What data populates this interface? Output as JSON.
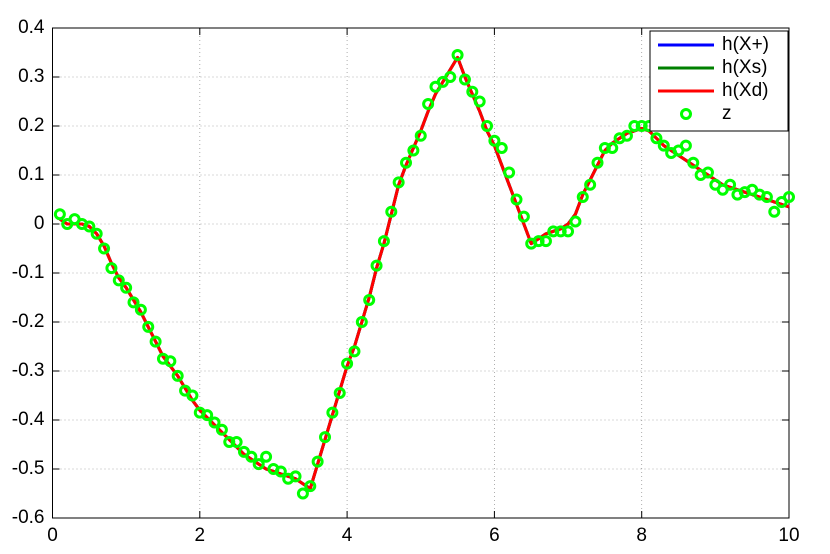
{
  "chart_data": {
    "type": "line",
    "x": [
      0.1,
      0.2,
      0.3,
      0.4,
      0.5,
      0.6,
      0.7,
      0.8,
      0.9,
      1.0,
      1.1,
      1.2,
      1.3,
      1.4,
      1.5,
      1.6,
      1.7,
      1.8,
      1.9,
      2.0,
      2.1,
      2.2,
      2.3,
      2.4,
      2.5,
      2.6,
      2.7,
      2.8,
      2.9,
      3.0,
      3.1,
      3.2,
      3.3,
      3.4,
      3.5,
      3.6,
      3.7,
      3.8,
      3.9,
      4.0,
      4.1,
      4.2,
      4.3,
      4.4,
      4.5,
      4.6,
      4.7,
      4.8,
      4.9,
      5.0,
      5.1,
      5.2,
      5.3,
      5.4,
      5.5,
      5.6,
      5.7,
      5.8,
      5.9,
      6.0,
      6.1,
      6.2,
      6.3,
      6.4,
      6.5,
      6.6,
      6.7,
      6.8,
      6.9,
      7.0,
      7.1,
      7.2,
      7.3,
      7.4,
      7.5,
      7.6,
      7.7,
      7.8,
      7.9,
      8.0,
      8.1,
      8.2,
      8.3,
      8.4,
      8.5,
      8.6,
      8.7,
      8.8,
      8.9,
      9.0,
      9.1,
      9.2,
      9.3,
      9.4,
      9.5,
      9.6,
      9.7,
      9.8,
      9.9,
      10.0
    ],
    "series": [
      {
        "name": "h(X+)",
        "color": "#0000ff",
        "mark": "line",
        "values": [
          0.01,
          0,
          0,
          0,
          -0.005,
          -0.02,
          -0.045,
          -0.08,
          -0.11,
          -0.13,
          -0.155,
          -0.18,
          -0.21,
          -0.24,
          -0.27,
          -0.29,
          -0.31,
          -0.335,
          -0.36,
          -0.38,
          -0.395,
          -0.41,
          -0.425,
          -0.44,
          -0.455,
          -0.47,
          -0.48,
          -0.49,
          -0.5,
          -0.505,
          -0.51,
          -0.515,
          -0.52,
          -0.53,
          -0.54,
          -0.49,
          -0.44,
          -0.39,
          -0.34,
          -0.29,
          -0.25,
          -0.2,
          -0.15,
          -0.09,
          -0.04,
          0.02,
          0.08,
          0.12,
          0.155,
          0.19,
          0.23,
          0.265,
          0.29,
          0.315,
          0.34,
          0.3,
          0.265,
          0.23,
          0.19,
          0.16,
          0.12,
          0.08,
          0.04,
          0,
          -0.04,
          -0.03,
          -0.02,
          -0.015,
          -0.01,
          0,
          0.02,
          0.06,
          0.09,
          0.12,
          0.15,
          0.165,
          0.175,
          0.185,
          0.19,
          0.195,
          0.19,
          0.175,
          0.16,
          0.15,
          0.14,
          0.13,
          0.12,
          0.11,
          0.1,
          0.09,
          0.08,
          0.075,
          0.07,
          0.065,
          0.06,
          0.055,
          0.05,
          0.045,
          0.04,
          0.035
        ]
      },
      {
        "name": "h(Xs)",
        "color": "#008000",
        "mark": "line",
        "values": [
          0.01,
          0,
          0,
          0,
          -0.005,
          -0.02,
          -0.045,
          -0.08,
          -0.11,
          -0.13,
          -0.155,
          -0.18,
          -0.21,
          -0.24,
          -0.27,
          -0.29,
          -0.31,
          -0.335,
          -0.36,
          -0.38,
          -0.395,
          -0.41,
          -0.425,
          -0.44,
          -0.455,
          -0.47,
          -0.48,
          -0.49,
          -0.5,
          -0.505,
          -0.51,
          -0.515,
          -0.52,
          -0.53,
          -0.54,
          -0.49,
          -0.44,
          -0.39,
          -0.34,
          -0.29,
          -0.25,
          -0.2,
          -0.15,
          -0.09,
          -0.04,
          0.02,
          0.08,
          0.12,
          0.155,
          0.19,
          0.23,
          0.265,
          0.29,
          0.315,
          0.34,
          0.3,
          0.265,
          0.23,
          0.19,
          0.16,
          0.12,
          0.08,
          0.04,
          0,
          -0.04,
          -0.03,
          -0.02,
          -0.015,
          -0.01,
          0,
          0.02,
          0.06,
          0.09,
          0.12,
          0.15,
          0.165,
          0.175,
          0.185,
          0.19,
          0.195,
          0.19,
          0.175,
          0.16,
          0.15,
          0.14,
          0.13,
          0.12,
          0.11,
          0.1,
          0.09,
          0.08,
          0.075,
          0.07,
          0.065,
          0.06,
          0.055,
          0.05,
          0.045,
          0.04,
          0.035
        ]
      },
      {
        "name": "h(Xd)",
        "color": "#ff0000",
        "mark": "line",
        "values": [
          0.01,
          0,
          0,
          0,
          -0.005,
          -0.02,
          -0.045,
          -0.08,
          -0.11,
          -0.13,
          -0.155,
          -0.18,
          -0.21,
          -0.24,
          -0.27,
          -0.29,
          -0.31,
          -0.335,
          -0.36,
          -0.38,
          -0.395,
          -0.41,
          -0.425,
          -0.44,
          -0.455,
          -0.47,
          -0.48,
          -0.49,
          -0.5,
          -0.505,
          -0.51,
          -0.515,
          -0.52,
          -0.53,
          -0.54,
          -0.49,
          -0.44,
          -0.39,
          -0.34,
          -0.29,
          -0.25,
          -0.2,
          -0.15,
          -0.09,
          -0.04,
          0.02,
          0.08,
          0.12,
          0.155,
          0.19,
          0.23,
          0.265,
          0.29,
          0.315,
          0.34,
          0.3,
          0.265,
          0.23,
          0.19,
          0.16,
          0.12,
          0.08,
          0.04,
          0,
          -0.04,
          -0.03,
          -0.02,
          -0.015,
          -0.01,
          0,
          0.02,
          0.06,
          0.09,
          0.12,
          0.15,
          0.165,
          0.175,
          0.185,
          0.19,
          0.195,
          0.19,
          0.175,
          0.16,
          0.15,
          0.14,
          0.13,
          0.12,
          0.11,
          0.1,
          0.09,
          0.08,
          0.075,
          0.07,
          0.065,
          0.06,
          0.055,
          0.05,
          0.045,
          0.04,
          0.035
        ]
      },
      {
        "name": "z",
        "color": "#00ff00",
        "mark": "circle",
        "values": [
          0.02,
          0,
          0.01,
          0,
          -0.005,
          -0.02,
          -0.05,
          -0.09,
          -0.115,
          -0.13,
          -0.16,
          -0.175,
          -0.21,
          -0.24,
          -0.275,
          -0.28,
          -0.31,
          -0.34,
          -0.35,
          -0.385,
          -0.39,
          -0.405,
          -0.42,
          -0.445,
          -0.445,
          -0.465,
          -0.475,
          -0.49,
          -0.475,
          -0.5,
          -0.505,
          -0.52,
          -0.515,
          -0.55,
          -0.535,
          -0.485,
          -0.435,
          -0.385,
          -0.345,
          -0.285,
          -0.26,
          -0.2,
          -0.155,
          -0.085,
          -0.035,
          0.025,
          0.085,
          0.125,
          0.15,
          0.18,
          0.245,
          0.28,
          0.29,
          0.3,
          0.345,
          0.295,
          0.27,
          0.25,
          0.2,
          0.17,
          0.155,
          0.105,
          0.05,
          0.015,
          -0.04,
          -0.035,
          -0.035,
          -0.015,
          -0.015,
          -0.015,
          0.005,
          0.055,
          0.08,
          0.125,
          0.155,
          0.155,
          0.175,
          0.18,
          0.2,
          0.2,
          0.2,
          0.175,
          0.16,
          0.145,
          0.15,
          0.16,
          0.125,
          0.1,
          0.105,
          0.08,
          0.07,
          0.08,
          0.06,
          0.065,
          0.07,
          0.06,
          0.055,
          0.025,
          0.045,
          0.055
        ]
      }
    ],
    "xlim": [
      0,
      10
    ],
    "xticks": [
      0,
      2,
      4,
      6,
      8,
      10
    ],
    "ylim": [
      -0.6,
      0.4
    ],
    "yticks": [
      -0.6,
      -0.5,
      -0.4,
      -0.3,
      -0.2,
      -0.1,
      0,
      0.1,
      0.2,
      0.3,
      0.4
    ],
    "grid": true,
    "legend": "northeast"
  }
}
